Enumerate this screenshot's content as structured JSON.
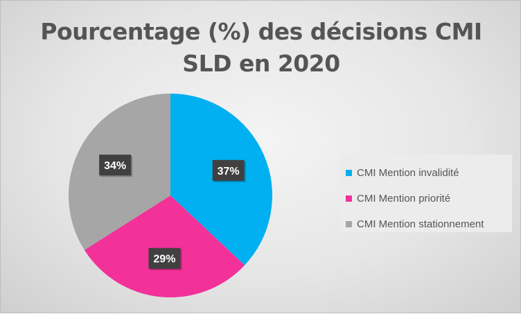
{
  "chart_data": {
    "type": "pie",
    "title_lines": [
      "Pourcentage (%) des décisions CMI",
      "SLD en 2020"
    ],
    "slices": [
      {
        "label": "CMI Mention invalidité",
        "value": 37,
        "display": "37%",
        "color": "#00b0f0"
      },
      {
        "label": "CMI Mention priorité",
        "value": 29,
        "display": "29%",
        "color": "#f23199"
      },
      {
        "label": "CMI Mention stationnement",
        "value": 34,
        "display": "34%",
        "color": "#a6a6a6"
      }
    ],
    "legend_position": "right"
  }
}
